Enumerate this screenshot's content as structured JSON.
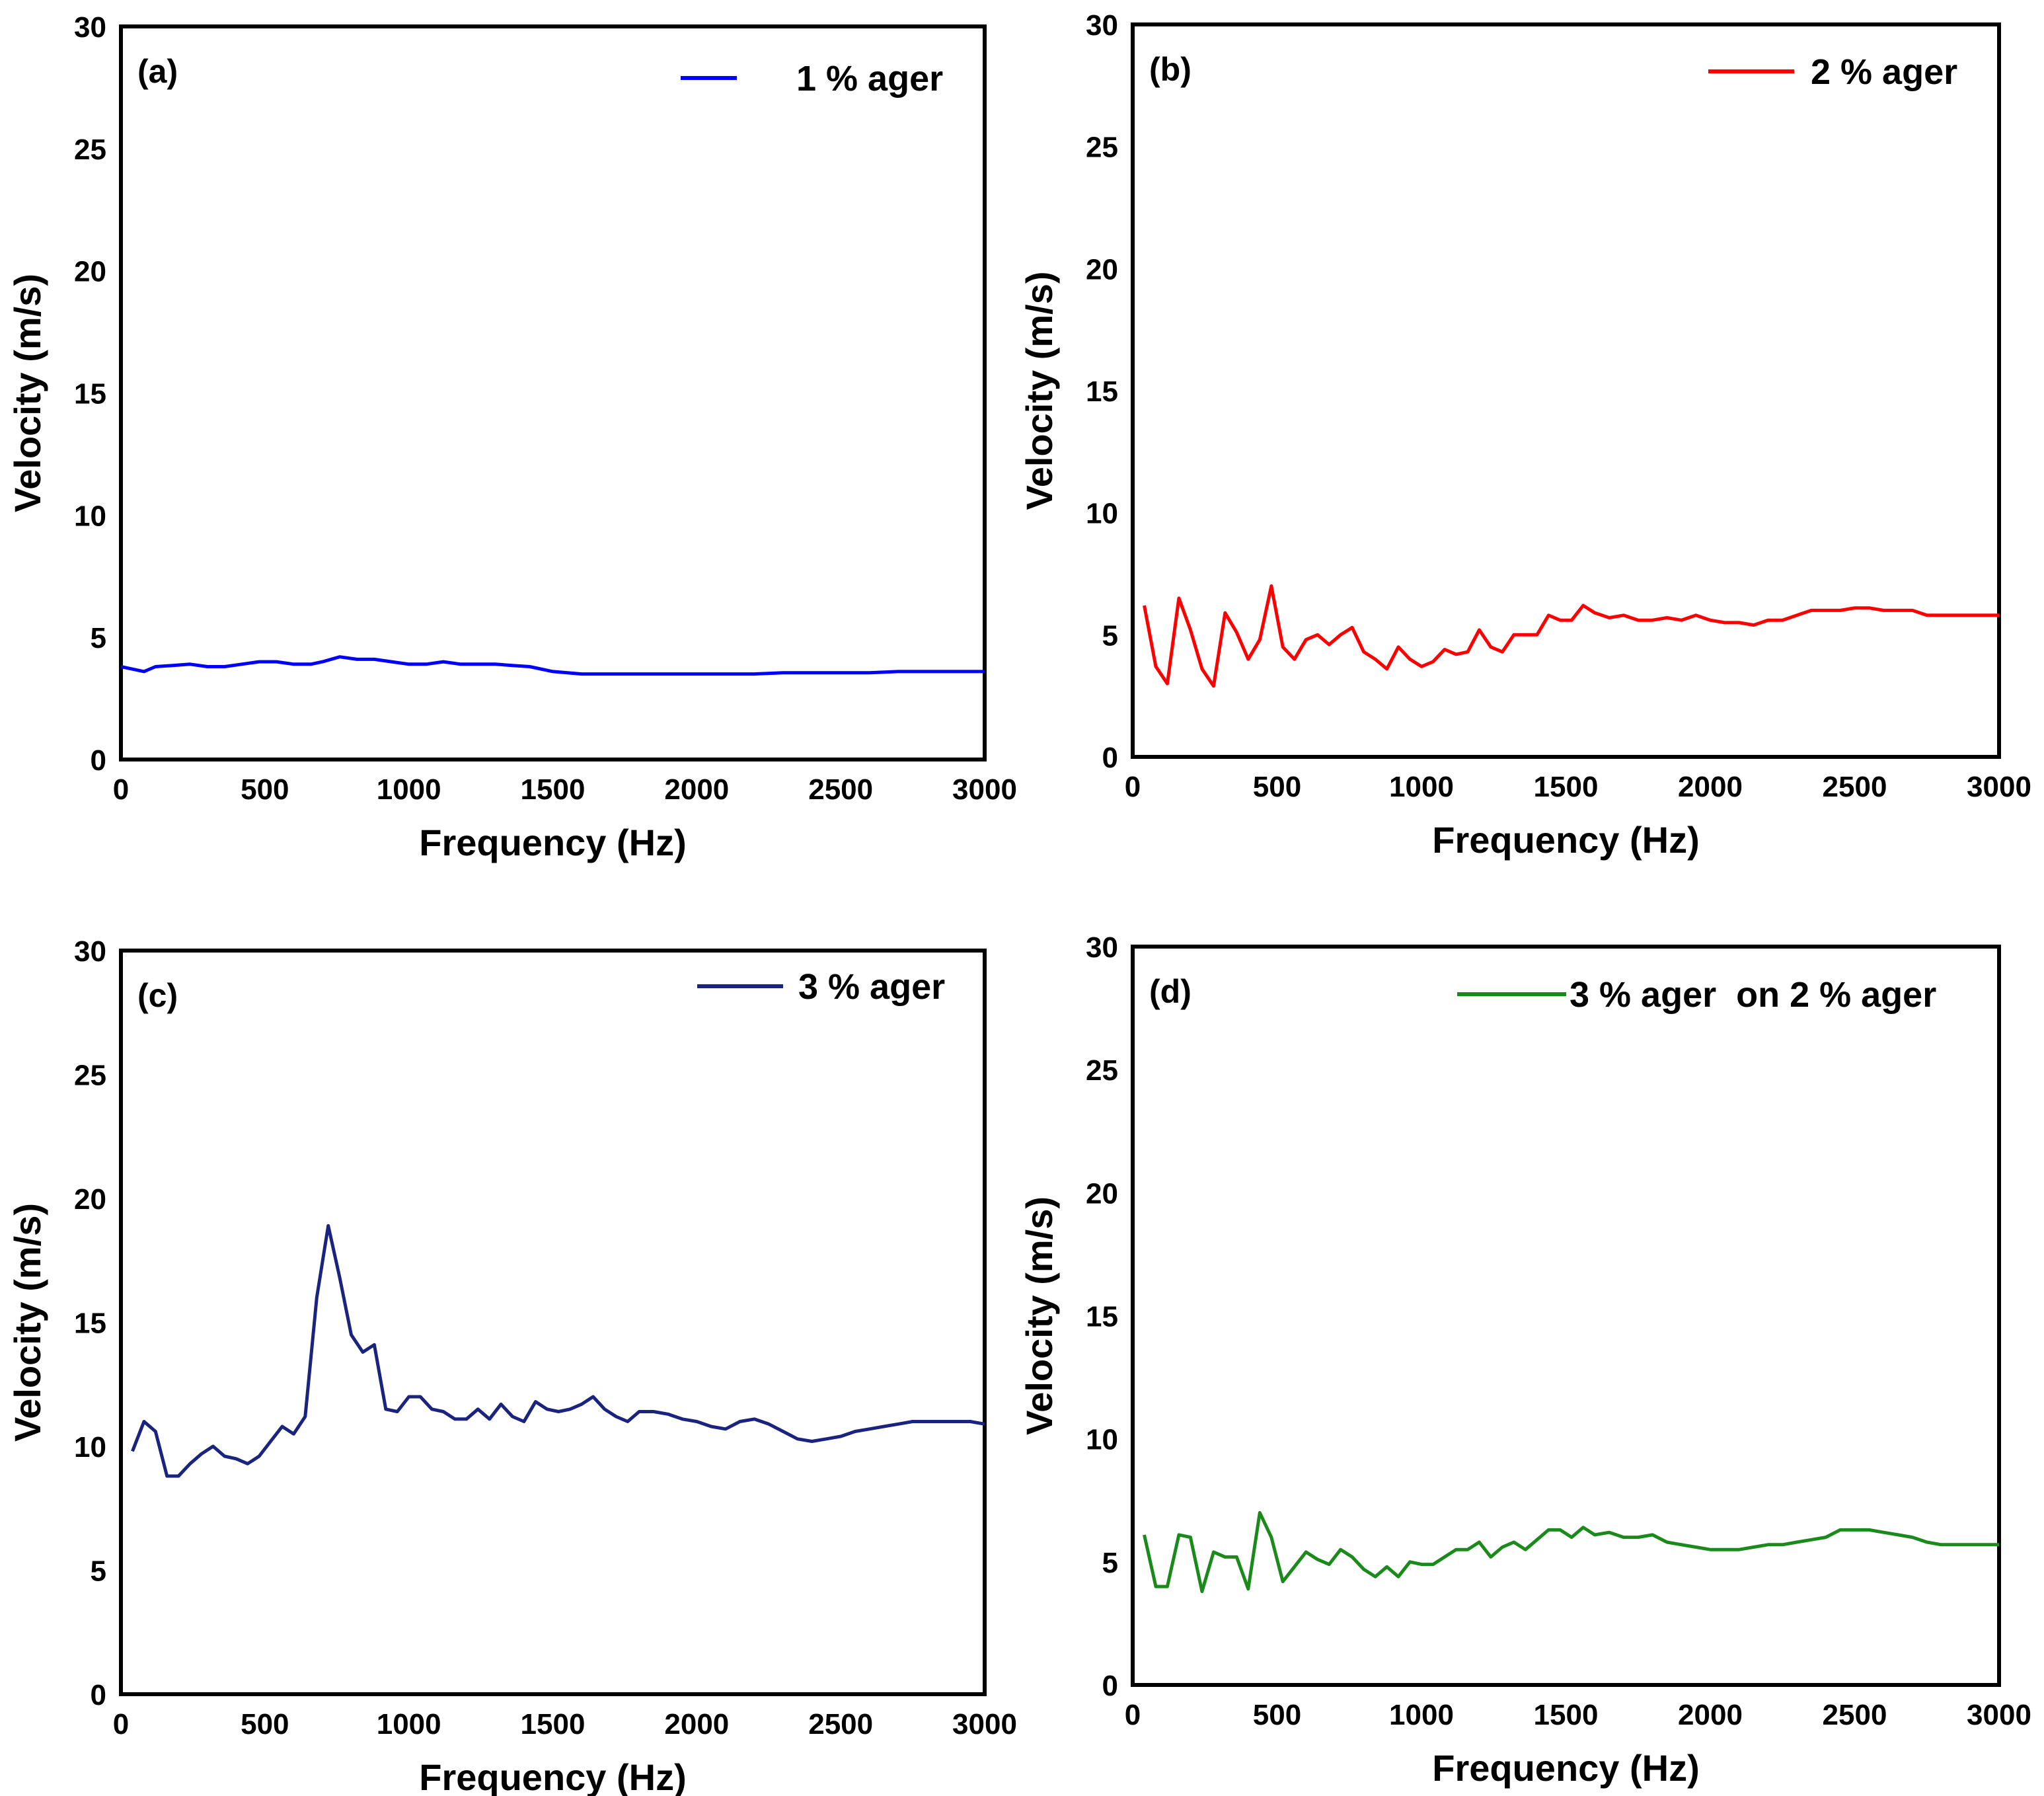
{
  "figure": {
    "background": "#ffffff"
  },
  "chart_data": [
    {
      "type": "line",
      "panel": "(a)",
      "xlabel": "Frequency (Hz)",
      "ylabel": "Velocity (m/s)",
      "xlim": [
        0,
        3000
      ],
      "ylim": [
        0,
        30
      ],
      "xticks": [
        0,
        500,
        1000,
        1500,
        2000,
        2500,
        3000
      ],
      "yticks": [
        0,
        5,
        10,
        15,
        20,
        25,
        30
      ],
      "legend_position": "top-right",
      "series": [
        {
          "name": "1 % ager",
          "color": "#0000ff",
          "x": [
            0,
            40,
            80,
            120,
            180,
            240,
            300,
            360,
            420,
            480,
            540,
            600,
            660,
            700,
            760,
            820,
            880,
            940,
            1000,
            1060,
            1120,
            1180,
            1240,
            1300,
            1360,
            1420,
            1500,
            1600,
            1700,
            1800,
            1900,
            2000,
            2100,
            2200,
            2300,
            2400,
            2500,
            2600,
            2700,
            2800,
            2900,
            3000
          ],
          "y": [
            3.8,
            3.7,
            3.6,
            3.8,
            3.85,
            3.9,
            3.8,
            3.8,
            3.9,
            4.0,
            4.0,
            3.9,
            3.9,
            4.0,
            4.2,
            4.1,
            4.1,
            4.0,
            3.9,
            3.9,
            4.0,
            3.9,
            3.9,
            3.9,
            3.85,
            3.8,
            3.6,
            3.5,
            3.5,
            3.5,
            3.5,
            3.5,
            3.5,
            3.5,
            3.55,
            3.55,
            3.55,
            3.55,
            3.6,
            3.6,
            3.6,
            3.6
          ]
        }
      ]
    },
    {
      "type": "line",
      "panel": "(b)",
      "xlabel": "Frequency (Hz)",
      "ylabel": "Velocity (m/s)",
      "xlim": [
        0,
        3000
      ],
      "ylim": [
        0,
        30
      ],
      "xticks": [
        0,
        500,
        1000,
        1500,
        2000,
        2500,
        3000
      ],
      "yticks": [
        0,
        5,
        10,
        15,
        20,
        25,
        30
      ],
      "legend_position": "top-right",
      "series": [
        {
          "name": "2 % ager",
          "color": "#ff0000",
          "x": [
            40,
            80,
            120,
            160,
            200,
            240,
            280,
            320,
            360,
            400,
            440,
            480,
            520,
            560,
            600,
            640,
            680,
            720,
            760,
            800,
            840,
            880,
            920,
            960,
            1000,
            1040,
            1080,
            1120,
            1160,
            1200,
            1240,
            1280,
            1320,
            1360,
            1400,
            1440,
            1480,
            1520,
            1560,
            1600,
            1650,
            1700,
            1750,
            1800,
            1850,
            1900,
            1950,
            2000,
            2050,
            2100,
            2150,
            2200,
            2250,
            2300,
            2350,
            2400,
            2450,
            2500,
            2550,
            2600,
            2650,
            2700,
            2750,
            2800,
            2850,
            2900,
            2950,
            3000
          ],
          "y": [
            6.2,
            3.7,
            3.0,
            6.5,
            5.2,
            3.6,
            2.9,
            5.9,
            5.1,
            4.0,
            4.8,
            7.0,
            4.5,
            4.0,
            4.8,
            5.0,
            4.6,
            5.0,
            5.3,
            4.3,
            4.0,
            3.6,
            4.5,
            4.0,
            3.7,
            3.9,
            4.4,
            4.2,
            4.3,
            5.2,
            4.5,
            4.3,
            5.0,
            5.0,
            5.0,
            5.8,
            5.6,
            5.6,
            6.2,
            5.9,
            5.7,
            5.8,
            5.6,
            5.6,
            5.7,
            5.6,
            5.8,
            5.6,
            5.5,
            5.5,
            5.4,
            5.6,
            5.6,
            5.8,
            6.0,
            6.0,
            6.0,
            6.1,
            6.1,
            6.0,
            6.0,
            6.0,
            5.8,
            5.8,
            5.8,
            5.8,
            5.8,
            5.8
          ]
        }
      ]
    },
    {
      "type": "line",
      "panel": "(c)",
      "xlabel": "Frequency (Hz)",
      "ylabel": "Velocity (m/s)",
      "xlim": [
        0,
        3000
      ],
      "ylim": [
        0,
        30
      ],
      "xticks": [
        0,
        500,
        1000,
        1500,
        2000,
        2500,
        3000
      ],
      "yticks": [
        0,
        5,
        10,
        15,
        20,
        25,
        30
      ],
      "legend_position": "top-right",
      "series": [
        {
          "name": "3 % ager",
          "color": "#1a237e",
          "x": [
            40,
            80,
            120,
            160,
            200,
            240,
            280,
            320,
            360,
            400,
            440,
            480,
            520,
            560,
            600,
            640,
            680,
            720,
            760,
            800,
            840,
            880,
            920,
            960,
            1000,
            1040,
            1080,
            1120,
            1160,
            1200,
            1240,
            1280,
            1320,
            1360,
            1400,
            1440,
            1480,
            1520,
            1560,
            1600,
            1640,
            1680,
            1720,
            1760,
            1800,
            1850,
            1900,
            1950,
            2000,
            2050,
            2100,
            2150,
            2200,
            2250,
            2300,
            2350,
            2400,
            2450,
            2500,
            2550,
            2600,
            2650,
            2700,
            2750,
            2800,
            2850,
            2900,
            2950,
            3000
          ],
          "y": [
            9.8,
            11.0,
            10.6,
            8.8,
            8.8,
            9.3,
            9.7,
            10.0,
            9.6,
            9.5,
            9.3,
            9.6,
            10.2,
            10.8,
            10.5,
            11.2,
            16.0,
            18.9,
            16.8,
            14.5,
            13.8,
            14.1,
            11.5,
            11.4,
            12.0,
            12.0,
            11.5,
            11.4,
            11.1,
            11.1,
            11.5,
            11.1,
            11.7,
            11.2,
            11.0,
            11.8,
            11.5,
            11.4,
            11.5,
            11.7,
            12.0,
            11.5,
            11.2,
            11.0,
            11.4,
            11.4,
            11.3,
            11.1,
            11.0,
            10.8,
            10.7,
            11.0,
            11.1,
            10.9,
            10.6,
            10.3,
            10.2,
            10.3,
            10.4,
            10.6,
            10.7,
            10.8,
            10.9,
            11.0,
            11.0,
            11.0,
            11.0,
            11.0,
            10.9
          ]
        }
      ]
    },
    {
      "type": "line",
      "panel": "(d)",
      "xlabel": "Frequency (Hz)",
      "ylabel": "Velocity (m/s)",
      "xlim": [
        0,
        3000
      ],
      "ylim": [
        0,
        30
      ],
      "xticks": [
        0,
        500,
        1000,
        1500,
        2000,
        2500,
        3000
      ],
      "yticks": [
        0,
        5,
        10,
        15,
        20,
        25,
        30
      ],
      "legend_position": "top-right",
      "series": [
        {
          "name": "3 % ager  on 2 % ager",
          "color": "#1a8a1a",
          "x": [
            40,
            80,
            120,
            160,
            200,
            240,
            280,
            320,
            360,
            400,
            440,
            480,
            520,
            560,
            600,
            640,
            680,
            720,
            760,
            800,
            840,
            880,
            920,
            960,
            1000,
            1040,
            1080,
            1120,
            1160,
            1200,
            1240,
            1280,
            1320,
            1360,
            1400,
            1440,
            1480,
            1520,
            1560,
            1600,
            1650,
            1700,
            1750,
            1800,
            1850,
            1900,
            1950,
            2000,
            2050,
            2100,
            2150,
            2200,
            2250,
            2300,
            2350,
            2400,
            2450,
            2500,
            2550,
            2600,
            2650,
            2700,
            2750,
            2800,
            2850,
            2900,
            2950,
            3000
          ],
          "y": [
            6.1,
            4.0,
            4.0,
            6.1,
            6.0,
            3.8,
            5.4,
            5.2,
            5.2,
            3.9,
            7.0,
            6.0,
            4.2,
            4.8,
            5.4,
            5.1,
            4.9,
            5.5,
            5.2,
            4.7,
            4.4,
            4.8,
            4.4,
            5.0,
            4.9,
            4.9,
            5.2,
            5.5,
            5.5,
            5.8,
            5.2,
            5.6,
            5.8,
            5.5,
            5.9,
            6.3,
            6.3,
            6.0,
            6.4,
            6.1,
            6.2,
            6.0,
            6.0,
            6.1,
            5.8,
            5.7,
            5.6,
            5.5,
            5.5,
            5.5,
            5.6,
            5.7,
            5.7,
            5.8,
            5.9,
            6.0,
            6.3,
            6.3,
            6.3,
            6.2,
            6.1,
            6.0,
            5.8,
            5.7,
            5.7,
            5.7,
            5.7,
            5.7
          ]
        }
      ]
    }
  ]
}
